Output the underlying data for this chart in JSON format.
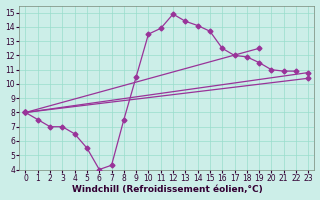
{
  "bg_color": "#cceee8",
  "grid_color": "#99ddcc",
  "line_color": "#993399",
  "xlim": [
    -0.5,
    23.5
  ],
  "ylim": [
    4,
    15.5
  ],
  "xticks": [
    0,
    1,
    2,
    3,
    4,
    5,
    6,
    7,
    8,
    9,
    10,
    11,
    12,
    13,
    14,
    15,
    16,
    17,
    18,
    19,
    20,
    21,
    22,
    23
  ],
  "yticks": [
    4,
    5,
    6,
    7,
    8,
    9,
    10,
    11,
    12,
    13,
    14,
    15
  ],
  "line1_x": [
    0,
    1,
    2,
    3,
    4,
    5,
    6,
    7,
    8,
    9,
    10,
    11,
    12,
    13,
    14,
    15,
    16,
    17,
    18,
    19,
    20,
    21,
    22
  ],
  "line1_y": [
    8.0,
    7.5,
    7.0,
    7.0,
    6.5,
    5.5,
    4.0,
    4.3,
    7.5,
    10.5,
    13.5,
    13.9,
    14.9,
    14.4,
    14.1,
    13.7,
    12.5,
    12.0,
    11.9,
    11.5,
    11.0,
    10.9,
    10.9
  ],
  "line2_x": [
    0,
    23
  ],
  "line2_y": [
    8.0,
    10.8
  ],
  "line3_x": [
    0,
    23
  ],
  "line3_y": [
    8.0,
    10.4
  ],
  "line4_x": [
    0,
    19
  ],
  "line4_y": [
    8.0,
    12.5
  ],
  "xlabel": "Windchill (Refroidissement éolien,°C)",
  "marker": "D",
  "markersize": 2.5,
  "linewidth": 0.9,
  "tick_fontsize": 5.5,
  "xlabel_fontsize": 6.5
}
